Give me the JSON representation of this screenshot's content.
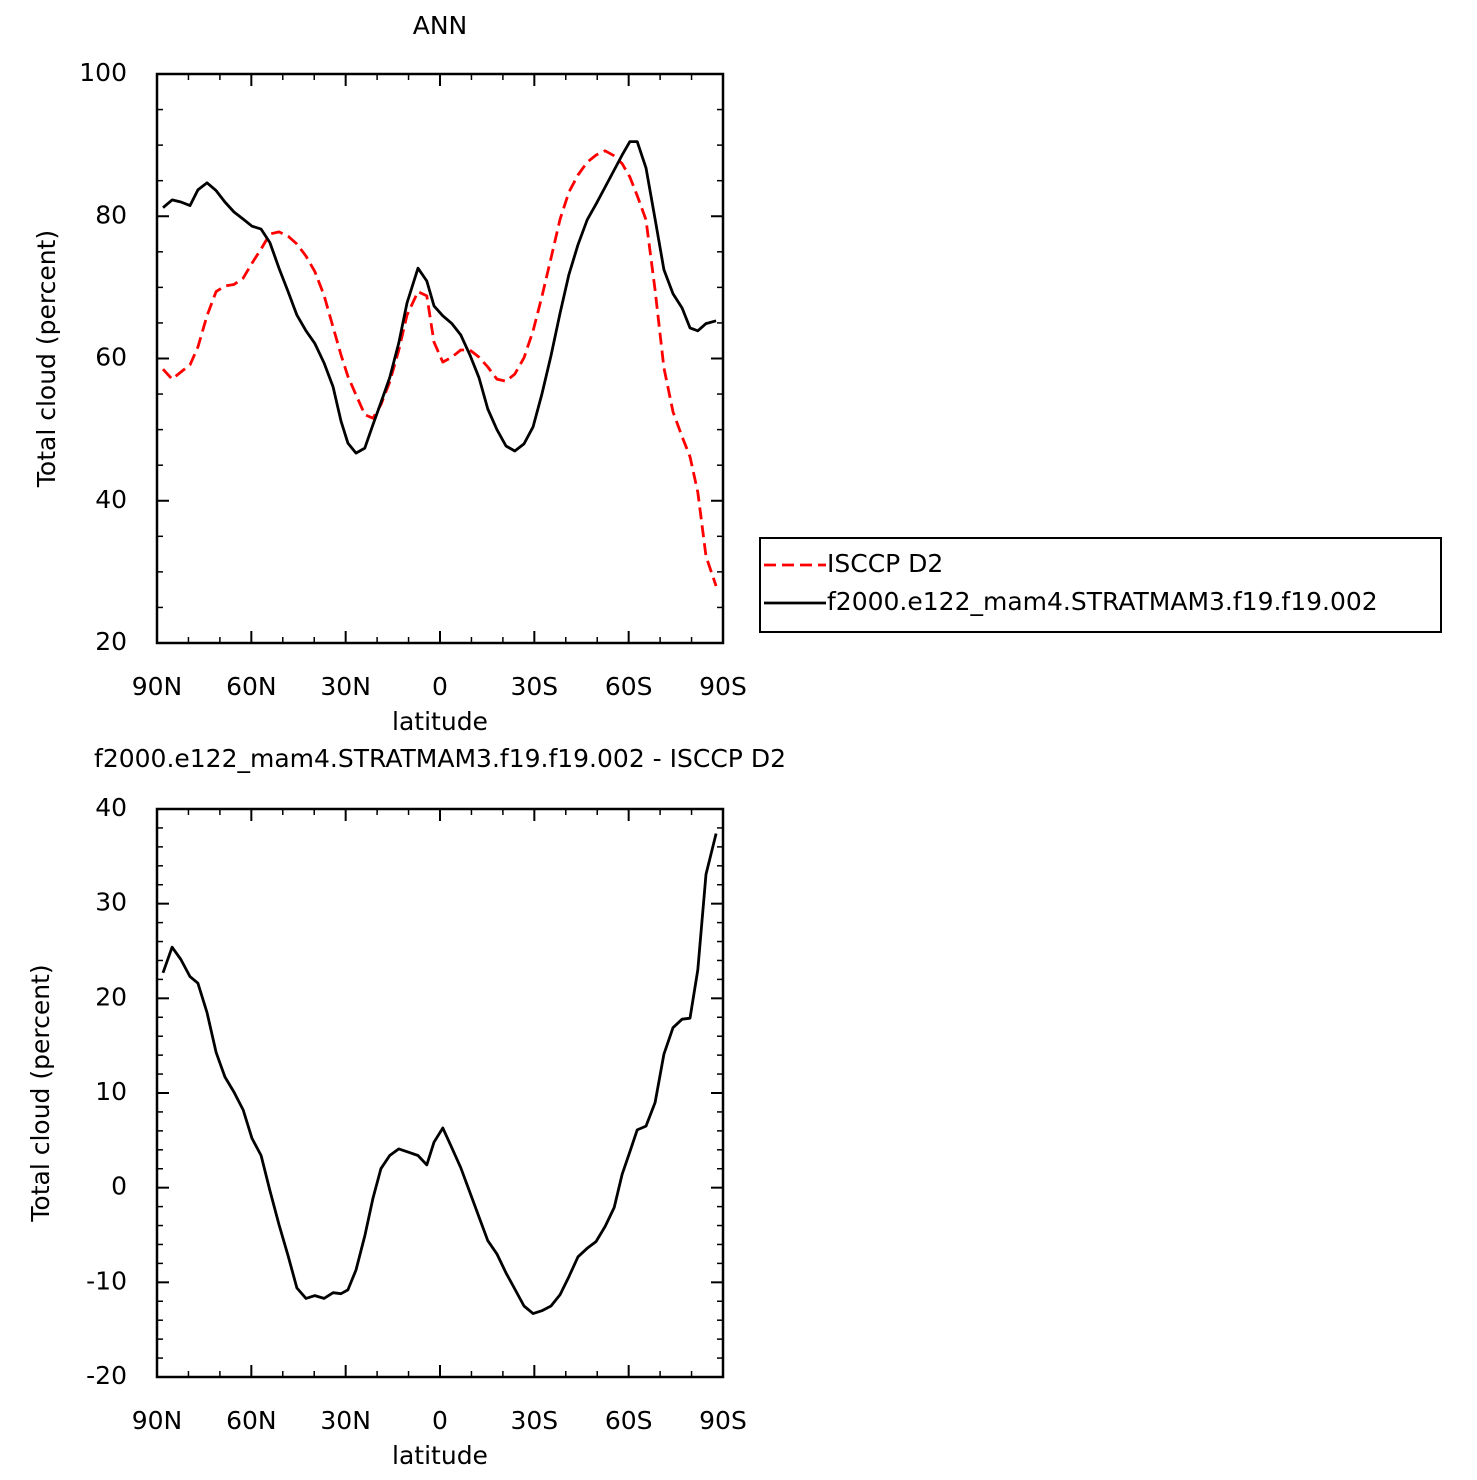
{
  "chart_data": [
    {
      "type": "line",
      "title": "ANN",
      "xlabel": "latitude",
      "ylabel": "Total cloud (percent)",
      "x": [
        88.1,
        85.2,
        82.4,
        79.5,
        77.0,
        74.1,
        71.2,
        68.4,
        65.5,
        62.6,
        59.8,
        56.9,
        54.1,
        51.2,
        48.3,
        45.5,
        42.6,
        39.8,
        36.9,
        34.0,
        31.5,
        29.3,
        26.7,
        23.9,
        21.3,
        18.8,
        16.0,
        13.1,
        10.5,
        7.0,
        4.2,
        1.9,
        -0.9,
        -3.8,
        -6.6,
        -9.5,
        -12.4,
        -15.2,
        -18.1,
        -21.0,
        -23.8,
        -26.7,
        -29.6,
        -32.4,
        -35.3,
        -38.2,
        -41.0,
        -43.9,
        -46.8,
        -49.6,
        -52.5,
        -55.4,
        -57.9,
        -60.4,
        -62.7,
        -65.5,
        -68.4,
        -71.2,
        -74.1,
        -77.0,
        -79.5,
        -82.0,
        -84.6,
        -87.8
      ],
      "series": [
        {
          "name": "ISCCP D2",
          "color": "#ff0000",
          "dash": true,
          "values": [
            58.5,
            57.1,
            58.1,
            59.1,
            61.6,
            66.0,
            69.4,
            70.2,
            70.4,
            71.3,
            73.4,
            75.4,
            77.5,
            77.8,
            77.2,
            76.1,
            74.4,
            72.2,
            68.9,
            64.4,
            60.5,
            57.5,
            54.9,
            52.1,
            51.6,
            53.5,
            56.7,
            61.2,
            66.1,
            69.4,
            68.8,
            62.3,
            59.5,
            60.2,
            61.2,
            61.2,
            60.2,
            58.8,
            57.1,
            56.8,
            57.8,
            60.1,
            63.9,
            68.7,
            74.1,
            79.6,
            83.4,
            85.8,
            87.6,
            88.6,
            89.2,
            88.5,
            87.4,
            85.5,
            82.9,
            79.5,
            69.6,
            58.7,
            52.5,
            49.0,
            46.2,
            41.2,
            32.2,
            28.0
          ]
        },
        {
          "name": "f2000.e122_mam4.STRATMAM3.f19.f19.002",
          "color": "#000000",
          "dash": false,
          "values": [
            81.2,
            82.3,
            82.0,
            81.5,
            83.7,
            84.7,
            83.6,
            82.0,
            80.6,
            79.6,
            78.6,
            78.2,
            76.3,
            72.7,
            69.4,
            66.1,
            63.9,
            62.1,
            59.4,
            56.0,
            51.2,
            48.1,
            46.7,
            47.4,
            50.7,
            53.8,
            57.3,
            62.2,
            67.8,
            72.7,
            70.9,
            67.4,
            66.0,
            64.9,
            63.3,
            60.5,
            57.3,
            52.9,
            50.0,
            47.7,
            47.0,
            48.0,
            50.4,
            55.0,
            60.4,
            66.4,
            71.8,
            76.0,
            79.5,
            81.7,
            84.1,
            86.5,
            88.6,
            90.5,
            90.5,
            86.8,
            79.6,
            72.5,
            69.1,
            67.1,
            64.3,
            63.9,
            64.9,
            65.3
          ]
        }
      ],
      "xlim": [
        90,
        -90
      ],
      "xticks": [
        {
          "value": 90,
          "label": "90N"
        },
        {
          "value": 60,
          "label": "60N"
        },
        {
          "value": 30,
          "label": "30N"
        },
        0,
        {
          "value": -30,
          "label": "30S"
        },
        {
          "value": -60,
          "label": "60S"
        },
        {
          "value": -90,
          "label": "90S"
        }
      ],
      "xminorticks": [
        80,
        70,
        50,
        40,
        20,
        10,
        -10,
        -20,
        -40,
        -50,
        -70,
        -80
      ],
      "ylim": [
        20,
        100
      ],
      "yticks": [
        20,
        40,
        60,
        80,
        100
      ],
      "yminorticks": [
        25,
        30,
        35,
        45,
        50,
        55,
        65,
        70,
        75,
        85,
        90,
        95
      ],
      "legend": "right"
    },
    {
      "type": "line",
      "title": "f2000.e122_mam4.STRATMAM3.f19.f19.002 - ISCCP D2",
      "xlabel": "latitude",
      "ylabel": "Total cloud (percent)",
      "x": [
        88.1,
        85.2,
        82.4,
        79.5,
        77.0,
        74.1,
        71.2,
        68.4,
        65.5,
        62.6,
        59.8,
        56.9,
        54.1,
        51.2,
        48.3,
        45.5,
        42.6,
        39.8,
        36.9,
        34.0,
        31.5,
        29.3,
        26.7,
        23.9,
        21.3,
        18.8,
        16.0,
        13.1,
        10.5,
        7.0,
        4.2,
        1.9,
        -0.9,
        -3.8,
        -6.6,
        -9.5,
        -12.4,
        -15.2,
        -18.1,
        -21.0,
        -23.8,
        -26.7,
        -29.6,
        -32.4,
        -35.3,
        -38.2,
        -41.0,
        -43.9,
        -46.8,
        -49.6,
        -52.5,
        -55.4,
        -57.9,
        -60.4,
        -62.7,
        -65.5,
        -68.4,
        -71.2,
        -74.1,
        -77.0,
        -79.5,
        -82.0,
        -84.6,
        -87.8
      ],
      "series": [
        {
          "color": "#000000",
          "dash": false,
          "values": [
            22.7,
            25.4,
            24.1,
            22.3,
            21.6,
            18.5,
            14.3,
            11.7,
            10.1,
            8.2,
            5.2,
            3.4,
            -0.3,
            -3.9,
            -7.2,
            -10.6,
            -11.7,
            -11.4,
            -11.7,
            -11.1,
            -11.2,
            -10.8,
            -8.7,
            -5.1,
            -1.1,
            2.0,
            3.4,
            4.1,
            3.8,
            3.4,
            2.4,
            4.8,
            6.3,
            4.2,
            2.1,
            -0.5,
            -3.1,
            -5.6,
            -7.0,
            -9.0,
            -10.7,
            -12.5,
            -13.3,
            -13.0,
            -12.5,
            -11.3,
            -9.4,
            -7.3,
            -6.4,
            -5.7,
            -4.1,
            -2.1,
            1.4,
            3.8,
            6.1,
            6.5,
            9.0,
            14.1,
            16.9,
            17.8,
            17.9,
            23.0,
            33.1,
            37.4
          ]
        }
      ],
      "xlim": [
        90,
        -90
      ],
      "xticks": [
        {
          "value": 90,
          "label": "90N"
        },
        {
          "value": 60,
          "label": "60N"
        },
        {
          "value": 30,
          "label": "30N"
        },
        0,
        {
          "value": -30,
          "label": "30S"
        },
        {
          "value": -60,
          "label": "60S"
        },
        {
          "value": -90,
          "label": "90S"
        }
      ],
      "xminorticks": [
        80,
        70,
        50,
        40,
        20,
        10,
        -10,
        -20,
        -40,
        -50,
        -70,
        -80
      ],
      "ylim": [
        -20,
        40
      ],
      "yticks": [
        -20,
        -10,
        0,
        10,
        20,
        30,
        40
      ],
      "yminorticks": [
        38,
        36,
        34,
        32,
        28,
        26,
        24,
        22,
        18,
        16,
        14,
        12,
        8,
        6,
        4,
        2,
        -2,
        -4,
        -6,
        -8,
        -12,
        -14,
        -16,
        -18
      ]
    }
  ]
}
